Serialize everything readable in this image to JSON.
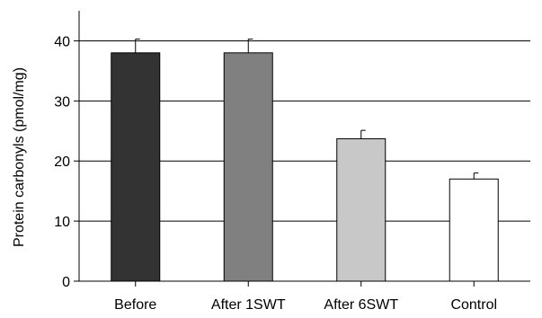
{
  "chart_data": {
    "type": "bar",
    "title": "",
    "xlabel": "",
    "ylabel": "Protein carbonyls (pmol/mg)",
    "ylim": [
      0,
      45
    ],
    "yticks": [
      0,
      10,
      20,
      30,
      40
    ],
    "grid": true,
    "categories": [
      "Before",
      "After 1SWT",
      "After 6SWT",
      "Control"
    ],
    "values": [
      38,
      38,
      23.7,
      17
    ],
    "errors": [
      2.3,
      2.3,
      1.4,
      1.0
    ],
    "bar_colors": [
      "#333333",
      "#808080",
      "#c8c8c8",
      "#ffffff"
    ]
  }
}
